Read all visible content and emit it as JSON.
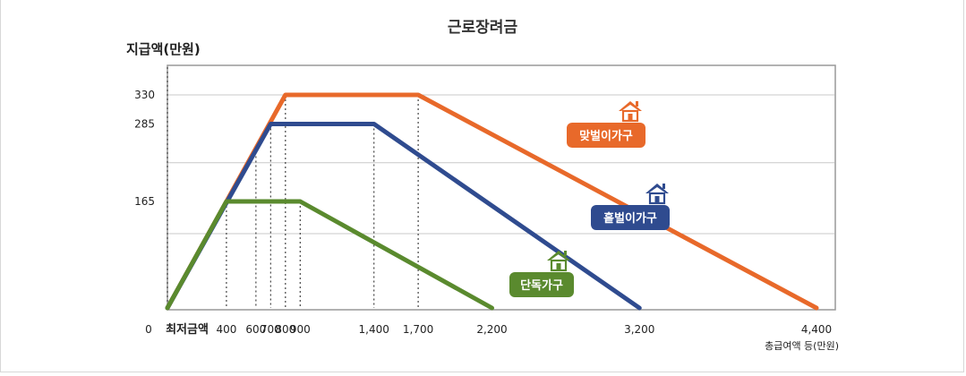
{
  "chart_data": {
    "type": "line",
    "title": "근로장려금",
    "ylabel": "지급액(만원)",
    "xlabel": "총급여액 등(만원)",
    "min_wage_label": "최저금액",
    "x_tick_labels": [
      "0",
      "400",
      "600",
      "700",
      "800",
      "900",
      "1,400",
      "1,700",
      "2,200",
      "3,200",
      "4,400"
    ],
    "y_tick_labels": [
      "165",
      "285",
      "330"
    ],
    "xlim": [
      0,
      4400
    ],
    "ylim": [
      0,
      355
    ],
    "grid": true,
    "series": [
      {
        "name": "맞벌이가구",
        "color": "#e8692a",
        "icon": "house-icon",
        "x": [
          0,
          800,
          1700,
          4400
        ],
        "y": [
          0,
          330,
          330,
          0
        ]
      },
      {
        "name": "홑벌이가구",
        "color": "#2f4b8f",
        "icon": "house-icon",
        "x": [
          0,
          700,
          1400,
          3200
        ],
        "y": [
          0,
          285,
          285,
          0
        ]
      },
      {
        "name": "단독가구",
        "color": "#5a8a2e",
        "icon": "house-icon",
        "x": [
          0,
          400,
          900,
          2200
        ],
        "y": [
          0,
          165,
          165,
          0
        ]
      }
    ]
  }
}
